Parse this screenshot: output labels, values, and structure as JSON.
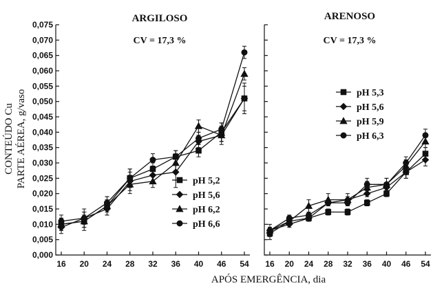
{
  "y_title_line1": "CONTEÚDO Cu",
  "y_title_line2": "PARTE AÉREA, g/vaso",
  "x_title": "APÓS EMERGÊNCIA, dia",
  "chart_data": [
    {
      "type": "line",
      "title": "ARGILOSO",
      "annotation": "CV = 17,3 %",
      "xlabel": "APÓS EMERGÊNCIA, dia",
      "ylabel": "CONTEÚDO Cu PARTE AÉREA, g/vaso",
      "x": [
        16,
        20,
        24,
        28,
        32,
        36,
        40,
        46,
        54
      ],
      "xtick_labels": [
        "16",
        "20",
        "24",
        "28",
        "32",
        "36",
        "40",
        "46",
        "54"
      ],
      "ylim": [
        0,
        0.075
      ],
      "ytick_labels": [
        "0,000",
        "0,005",
        "0,010",
        "0,015",
        "0,020",
        "0,025",
        "0,030",
        "0,035",
        "0,040",
        "0,045",
        "0,050",
        "0,055",
        "0,060",
        "0,065",
        "0,070",
        "0,075"
      ],
      "grid": false,
      "legend_position": "bottom-right",
      "series": [
        {
          "name": "pH 5,2",
          "marker": "square",
          "values": [
            0.01,
            0.011,
            0.016,
            0.025,
            0.028,
            0.032,
            0.034,
            0.04,
            0.051
          ],
          "error": [
            0.002,
            0.002,
            0.002,
            0.003,
            0.002,
            0.002,
            0.002,
            0.003,
            0.005
          ]
        },
        {
          "name": "pH 5,6",
          "marker": "diamond",
          "values": [
            0.009,
            0.012,
            0.015,
            0.024,
            0.026,
            0.027,
            0.037,
            0.039,
            0.051
          ],
          "error": [
            0.002,
            0.003,
            0.002,
            0.003,
            0.002,
            0.005,
            0.002,
            0.003,
            0.004
          ]
        },
        {
          "name": "pH 6,2",
          "marker": "triangle",
          "values": [
            0.01,
            0.011,
            0.016,
            0.023,
            0.024,
            0.03,
            0.042,
            0.039,
            0.059
          ],
          "error": [
            0.002,
            0.003,
            0.003,
            0.003,
            0.002,
            0.003,
            0.002,
            0.002,
            0.002
          ]
        },
        {
          "name": "pH 6,6",
          "marker": "circle",
          "values": [
            0.011,
            0.012,
            0.017,
            0.025,
            0.031,
            0.032,
            0.038,
            0.041,
            0.066
          ],
          "error": [
            0.002,
            0.002,
            0.002,
            0.003,
            0.002,
            0.002,
            0.002,
            0.002,
            0.002
          ]
        }
      ]
    },
    {
      "type": "line",
      "title": "ARENOSO",
      "annotation": "CV = 17,3 %",
      "xlabel": "APÓS EMERGÊNCIA, dia",
      "ylabel": "",
      "x": [
        16,
        20,
        24,
        28,
        32,
        36,
        40,
        46,
        54
      ],
      "xtick_labels": [
        "16",
        "20",
        "24",
        "28",
        "32",
        "36",
        "40",
        "46",
        "54"
      ],
      "ylim": [
        0,
        0.075
      ],
      "grid": false,
      "legend_position": "middle-right",
      "series": [
        {
          "name": "pH 5,3",
          "marker": "square",
          "values": [
            0.007,
            0.011,
            0.012,
            0.014,
            0.014,
            0.017,
            0.02,
            0.027,
            0.033
          ],
          "error": [
            0.002,
            0.001,
            0.001,
            0.001,
            0.001,
            0.001,
            0.001,
            0.002,
            0.002
          ]
        },
        {
          "name": "pH 5,6",
          "marker": "diamond",
          "values": [
            0.008,
            0.01,
            0.012,
            0.017,
            0.018,
            0.02,
            0.022,
            0.027,
            0.031
          ],
          "error": [
            0.002,
            0.001,
            0.001,
            0.001,
            0.001,
            0.001,
            0.001,
            0.002,
            0.002
          ]
        },
        {
          "name": "pH 5,9",
          "marker": "triangle",
          "values": [
            0.008,
            0.011,
            0.016,
            0.018,
            0.018,
            0.022,
            0.023,
            0.029,
            0.037
          ],
          "error": [
            0.001,
            0.001,
            0.002,
            0.002,
            0.002,
            0.002,
            0.002,
            0.002,
            0.002
          ]
        },
        {
          "name": "pH 6,3",
          "marker": "circle",
          "values": [
            0.008,
            0.012,
            0.013,
            0.017,
            0.017,
            0.023,
            0.023,
            0.03,
            0.039
          ],
          "error": [
            0.001,
            0.001,
            0.001,
            0.001,
            0.001,
            0.002,
            0.002,
            0.002,
            0.002
          ]
        }
      ]
    }
  ]
}
